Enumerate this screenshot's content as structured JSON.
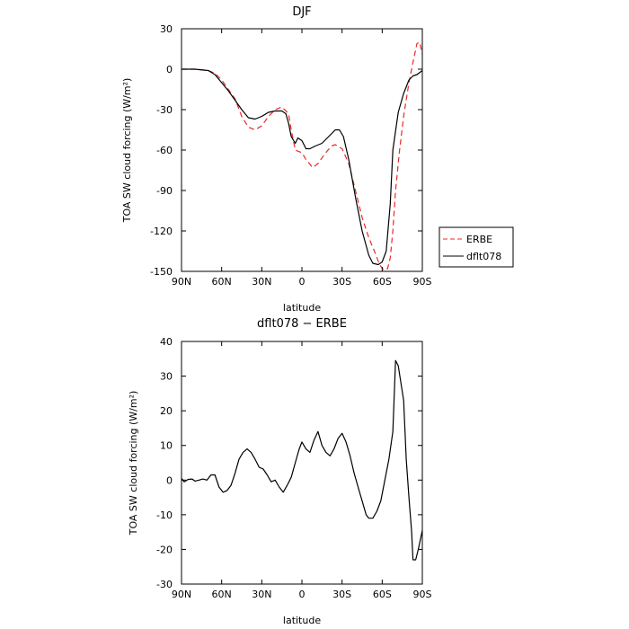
{
  "chart_data": [
    {
      "type": "line",
      "title": "DJF",
      "xlabel": "latitude",
      "ylabel": "TOA SW cloud forcing (W/m²)",
      "xlim": [
        90,
        -90
      ],
      "ylim": [
        -150,
        30
      ],
      "x_ticks": [
        {
          "value": 90,
          "label": "90N"
        },
        {
          "value": 60,
          "label": "60N"
        },
        {
          "value": 30,
          "label": "30N"
        },
        {
          "value": 0,
          "label": "0"
        },
        {
          "value": -30,
          "label": "30S"
        },
        {
          "value": -60,
          "label": "60S"
        },
        {
          "value": -90,
          "label": "90S"
        }
      ],
      "y_ticks": [
        30,
        0,
        -30,
        -60,
        -90,
        -120,
        -150
      ],
      "legend": "right",
      "series": [
        {
          "name": "ERBE",
          "color": "#e8282a",
          "dash": "dashed",
          "points": [
            [
              90,
              0
            ],
            [
              80,
              0
            ],
            [
              70,
              -1
            ],
            [
              65,
              -3
            ],
            [
              60,
              -8
            ],
            [
              55,
              -15
            ],
            [
              50,
              -22
            ],
            [
              45,
              -35
            ],
            [
              40,
              -43
            ],
            [
              35,
              -45
            ],
            [
              30,
              -42
            ],
            [
              25,
              -35
            ],
            [
              20,
              -30
            ],
            [
              15,
              -28
            ],
            [
              10,
              -33
            ],
            [
              8,
              -45
            ],
            [
              5,
              -60
            ],
            [
              0,
              -62
            ],
            [
              -3,
              -67
            ],
            [
              -8,
              -73
            ],
            [
              -12,
              -70
            ],
            [
              -17,
              -63
            ],
            [
              -22,
              -57
            ],
            [
              -25,
              -56
            ],
            [
              -30,
              -59
            ],
            [
              -35,
              -70
            ],
            [
              -40,
              -90
            ],
            [
              -45,
              -110
            ],
            [
              -50,
              -125
            ],
            [
              -55,
              -137
            ],
            [
              -58,
              -145
            ],
            [
              -61,
              -149
            ],
            [
              -64,
              -148
            ],
            [
              -66,
              -140
            ],
            [
              -68,
              -120
            ],
            [
              -70,
              -90
            ],
            [
              -73,
              -60
            ],
            [
              -76,
              -35
            ],
            [
              -80,
              -10
            ],
            [
              -83,
              5
            ],
            [
              -86,
              19
            ],
            [
              -88,
              20
            ],
            [
              -90,
              11
            ]
          ]
        },
        {
          "name": "dflt078",
          "color": "#000000",
          "dash": "solid",
          "points": [
            [
              90,
              0
            ],
            [
              80,
              0
            ],
            [
              70,
              -1
            ],
            [
              65,
              -4
            ],
            [
              60,
              -10
            ],
            [
              55,
              -16
            ],
            [
              50,
              -23
            ],
            [
              45,
              -30
            ],
            [
              40,
              -36
            ],
            [
              35,
              -37
            ],
            [
              30,
              -35
            ],
            [
              25,
              -32
            ],
            [
              20,
              -31
            ],
            [
              15,
              -31
            ],
            [
              12,
              -33
            ],
            [
              10,
              -40
            ],
            [
              8,
              -50
            ],
            [
              5,
              -55
            ],
            [
              3,
              -51
            ],
            [
              0,
              -53
            ],
            [
              -3,
              -59
            ],
            [
              -6,
              -59
            ],
            [
              -10,
              -57
            ],
            [
              -15,
              -55
            ],
            [
              -20,
              -50
            ],
            [
              -25,
              -45
            ],
            [
              -28,
              -45
            ],
            [
              -31,
              -50
            ],
            [
              -35,
              -67
            ],
            [
              -40,
              -95
            ],
            [
              -45,
              -120
            ],
            [
              -50,
              -138
            ],
            [
              -53,
              -144
            ],
            [
              -57,
              -145
            ],
            [
              -60,
              -143
            ],
            [
              -63,
              -135
            ],
            [
              -66,
              -100
            ],
            [
              -68,
              -60
            ],
            [
              -72,
              -32
            ],
            [
              -76,
              -18
            ],
            [
              -80,
              -8
            ],
            [
              -83,
              -5
            ],
            [
              -86,
              -4
            ],
            [
              -90,
              -1
            ]
          ]
        }
      ]
    },
    {
      "type": "line",
      "title": "dflt078 − ERBE",
      "xlabel": "latitude",
      "ylabel": "TOA SW cloud forcing (W/m²)",
      "xlim": [
        90,
        -90
      ],
      "ylim": [
        -30,
        40
      ],
      "x_ticks": [
        {
          "value": 90,
          "label": "90N"
        },
        {
          "value": 60,
          "label": "60N"
        },
        {
          "value": 30,
          "label": "30N"
        },
        {
          "value": 0,
          "label": "0"
        },
        {
          "value": -30,
          "label": "30S"
        },
        {
          "value": -60,
          "label": "60S"
        },
        {
          "value": -90,
          "label": "90S"
        }
      ],
      "y_ticks": [
        40,
        30,
        20,
        10,
        0,
        -10,
        -20,
        -30
      ],
      "series": [
        {
          "color": "#000000",
          "dash": "solid",
          "points": [
            [
              90,
              0.5
            ],
            [
              88,
              -0.5
            ],
            [
              85,
              0.2
            ],
            [
              82,
              0.3
            ],
            [
              80,
              -0.3
            ],
            [
              77,
              0
            ],
            [
              74,
              0.3
            ],
            [
              71,
              0
            ],
            [
              68,
              1.5
            ],
            [
              65,
              1.5
            ],
            [
              62,
              -2
            ],
            [
              59,
              -3.5
            ],
            [
              56,
              -3
            ],
            [
              53,
              -1.5
            ],
            [
              50,
              2
            ],
            [
              47,
              6
            ],
            [
              44,
              8
            ],
            [
              41,
              9
            ],
            [
              38,
              8
            ],
            [
              35,
              6
            ],
            [
              32,
              3.7
            ],
            [
              29,
              3.2
            ],
            [
              26,
              1.5
            ],
            [
              23,
              -0.5
            ],
            [
              20,
              0
            ],
            [
              17,
              -2
            ],
            [
              14,
              -3.5
            ],
            [
              11,
              -1.5
            ],
            [
              8,
              0.8
            ],
            [
              5,
              5
            ],
            [
              2,
              9
            ],
            [
              0,
              11
            ],
            [
              -3,
              9
            ],
            [
              -6,
              8
            ],
            [
              -9,
              11.5
            ],
            [
              -12,
              14
            ],
            [
              -15,
              10
            ],
            [
              -18,
              8
            ],
            [
              -21,
              7
            ],
            [
              -24,
              9
            ],
            [
              -27,
              12
            ],
            [
              -30,
              13.5
            ],
            [
              -33,
              11
            ],
            [
              -36,
              7
            ],
            [
              -39,
              2
            ],
            [
              -42,
              -2
            ],
            [
              -45,
              -6
            ],
            [
              -48,
              -10
            ],
            [
              -50,
              -11
            ],
            [
              -53,
              -11
            ],
            [
              -56,
              -9
            ],
            [
              -59,
              -6
            ],
            [
              -62,
              0
            ],
            [
              -65,
              6
            ],
            [
              -68,
              14
            ],
            [
              -70,
              34.5
            ],
            [
              -72,
              33
            ],
            [
              -74,
              28
            ],
            [
              -76,
              23
            ],
            [
              -78,
              6
            ],
            [
              -80,
              -5
            ],
            [
              -82,
              -15
            ],
            [
              -83,
              -23
            ],
            [
              -85,
              -23
            ],
            [
              -87,
              -20
            ],
            [
              -90,
              -14.5
            ]
          ]
        }
      ]
    }
  ]
}
